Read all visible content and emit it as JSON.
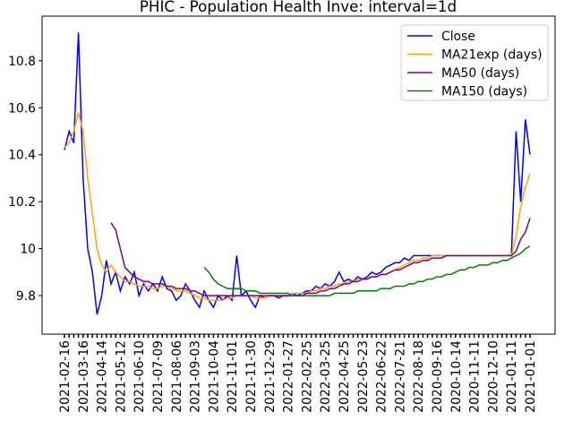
{
  "chart_data": {
    "type": "line",
    "title": "PHIC - Population Health Inve: interval=1d",
    "categories": [
      "2021-02-16",
      null,
      null,
      null,
      "2021-03-16",
      null,
      null,
      null,
      "2021-04-14",
      null,
      null,
      null,
      "2021-05-12",
      null,
      null,
      null,
      "2021-06-10",
      null,
      null,
      null,
      "2021-07-09",
      null,
      null,
      null,
      "2021-08-06",
      null,
      null,
      null,
      "2021-09-03",
      null,
      null,
      null,
      "2021-10-04",
      null,
      null,
      null,
      "2021-11-01",
      null,
      null,
      null,
      "2021-11-30",
      null,
      null,
      null,
      "2021-12-29",
      null,
      null,
      null,
      "2022-01-27",
      null,
      null,
      null,
      "2022-02-25",
      null,
      null,
      null,
      "2022-03-25",
      null,
      null,
      null,
      "2022-04-25",
      null,
      null,
      null,
      "2022-05-23",
      null,
      null,
      null,
      "2022-06-22",
      null,
      null,
      null,
      "2022-07-21",
      null,
      null,
      null,
      "2022-08-18",
      null,
      null,
      null,
      "2020-09-16",
      null,
      null,
      null,
      "2020-10-14",
      null,
      null,
      null,
      "2020-11-11",
      null,
      null,
      null,
      "2020-12-10",
      null,
      null,
      null,
      "2021-01-11",
      null,
      null,
      null,
      "2021-01-01"
    ],
    "series": [
      {
        "name": "Close",
        "color": "#0000ff",
        "values": [
          10.42,
          10.5,
          10.45,
          10.92,
          10.3,
          10.0,
          9.9,
          9.72,
          9.8,
          9.95,
          9.85,
          9.9,
          9.82,
          9.88,
          9.85,
          9.9,
          9.8,
          9.85,
          9.82,
          9.85,
          9.82,
          9.88,
          9.83,
          9.82,
          9.78,
          9.8,
          9.85,
          9.82,
          9.78,
          9.75,
          9.82,
          9.78,
          9.75,
          9.8,
          9.78,
          9.8,
          9.78,
          9.97,
          9.8,
          9.82,
          9.78,
          9.75,
          9.8,
          9.79,
          9.8,
          9.8,
          9.79,
          9.8,
          9.8,
          9.81,
          9.8,
          9.81,
          9.82,
          9.82,
          9.84,
          9.83,
          9.85,
          9.84,
          9.86,
          9.9,
          9.86,
          9.87,
          9.86,
          9.88,
          9.87,
          9.88,
          9.9,
          9.89,
          9.9,
          9.92,
          9.93,
          9.94,
          9.94,
          9.96,
          9.95,
          9.97,
          9.97,
          9.97,
          9.97,
          9.97,
          9.97,
          9.97,
          9.97,
          9.97,
          9.97,
          9.97,
          9.97,
          9.97,
          9.97,
          9.97,
          9.97,
          9.97,
          9.97,
          9.97,
          9.97,
          9.97,
          9.97,
          10.5,
          10.2,
          10.55,
          10.4
        ]
      },
      {
        "name": "MA21exp (days)",
        "color": "#ffa500",
        "values": [
          10.43,
          10.45,
          10.5,
          10.58,
          10.5,
          10.3,
          10.15,
          10.0,
          9.93,
          9.9,
          9.93,
          9.9,
          9.88,
          9.86,
          9.86,
          9.85,
          9.84,
          9.84,
          9.84,
          9.83,
          9.83,
          9.84,
          9.84,
          9.83,
          9.82,
          9.82,
          9.82,
          9.81,
          9.8,
          9.79,
          9.79,
          9.78,
          9.78,
          9.78,
          9.78,
          9.79,
          9.79,
          9.8,
          9.8,
          9.8,
          9.8,
          9.79,
          9.79,
          9.79,
          9.8,
          9.8,
          9.8,
          9.8,
          9.8,
          9.81,
          9.81,
          9.81,
          9.81,
          9.82,
          9.82,
          9.83,
          9.83,
          9.84,
          9.84,
          9.85,
          9.85,
          9.86,
          9.86,
          9.87,
          9.87,
          9.87,
          9.88,
          9.88,
          9.89,
          9.89,
          9.9,
          9.91,
          9.92,
          9.93,
          9.94,
          9.95,
          9.95,
          9.96,
          9.96,
          9.97,
          9.97,
          9.97,
          9.97,
          9.97,
          9.97,
          9.97,
          9.97,
          9.97,
          9.97,
          9.97,
          9.97,
          9.97,
          9.97,
          9.97,
          9.97,
          9.97,
          9.97,
          10.05,
          10.18,
          10.26,
          10.32
        ]
      },
      {
        "name": "MA50 (days)",
        "color": "#800080",
        "values": [
          null,
          null,
          null,
          null,
          null,
          null,
          null,
          null,
          null,
          null,
          10.11,
          10.08,
          10.0,
          9.92,
          9.9,
          9.88,
          9.87,
          9.86,
          9.86,
          9.85,
          9.85,
          9.85,
          9.84,
          9.84,
          9.83,
          9.83,
          9.83,
          9.82,
          9.82,
          9.81,
          9.8,
          9.8,
          9.8,
          9.8,
          9.8,
          9.8,
          9.8,
          9.8,
          9.8,
          9.8,
          9.8,
          9.8,
          9.8,
          9.8,
          9.8,
          9.8,
          9.8,
          9.8,
          9.8,
          9.8,
          9.8,
          9.8,
          9.81,
          9.81,
          9.81,
          9.82,
          9.82,
          9.83,
          9.83,
          9.84,
          9.85,
          9.85,
          9.86,
          9.86,
          9.87,
          9.87,
          9.88,
          9.88,
          9.89,
          9.89,
          9.9,
          9.91,
          9.91,
          9.92,
          9.93,
          9.94,
          9.94,
          9.95,
          9.95,
          9.96,
          9.96,
          9.96,
          9.97,
          9.97,
          9.97,
          9.97,
          9.97,
          9.97,
          9.97,
          9.97,
          9.97,
          9.97,
          9.97,
          9.97,
          9.97,
          9.97,
          9.97,
          9.99,
          10.04,
          10.07,
          10.13
        ]
      },
      {
        "name": "MA150 (days)",
        "color": "#008000",
        "values": [
          null,
          null,
          null,
          null,
          null,
          null,
          null,
          null,
          null,
          null,
          null,
          null,
          null,
          null,
          null,
          null,
          null,
          null,
          null,
          null,
          null,
          null,
          null,
          null,
          null,
          null,
          null,
          null,
          null,
          null,
          9.92,
          9.9,
          9.87,
          9.85,
          9.84,
          9.83,
          9.83,
          9.83,
          9.83,
          9.82,
          9.82,
          9.82,
          9.81,
          9.81,
          9.81,
          9.81,
          9.81,
          9.81,
          9.81,
          9.8,
          9.8,
          9.8,
          9.8,
          9.8,
          9.8,
          9.8,
          9.8,
          9.8,
          9.81,
          9.81,
          9.81,
          9.81,
          9.81,
          9.82,
          9.82,
          9.82,
          9.82,
          9.82,
          9.83,
          9.83,
          9.83,
          9.84,
          9.84,
          9.84,
          9.85,
          9.85,
          9.86,
          9.86,
          9.87,
          9.87,
          9.88,
          9.88,
          9.89,
          9.89,
          9.9,
          9.91,
          9.91,
          9.92,
          9.92,
          9.93,
          9.93,
          9.93,
          9.94,
          9.94,
          9.95,
          9.95,
          9.96,
          9.97,
          9.98,
          10.0,
          10.01
        ]
      }
    ],
    "ylim": [
      9.636,
      10.99
    ],
    "yticks": [
      9.8,
      10.0,
      10.2,
      10.4,
      10.6,
      10.8
    ],
    "legend": "upper right"
  }
}
